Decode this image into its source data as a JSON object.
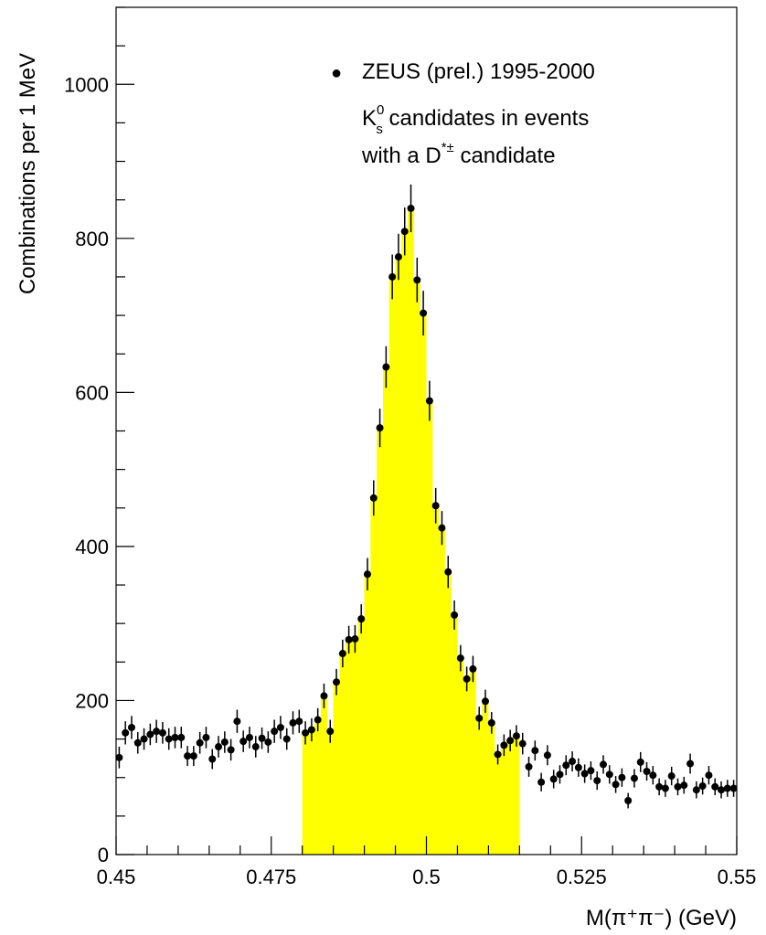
{
  "chart_data": {
    "type": "scatter",
    "xlabel": "M(π⁺π⁻)  (GeV)",
    "ylabel": "Combinations per 1 MeV",
    "xlim": [
      0.45,
      0.55
    ],
    "ylim": [
      0,
      1100
    ],
    "x_ticks": [
      {
        "value": 0.45,
        "label": "0.45"
      },
      {
        "value": 0.475,
        "label": "0.475"
      },
      {
        "value": 0.5,
        "label": "0.5"
      },
      {
        "value": 0.525,
        "label": "0.525"
      },
      {
        "value": 0.55,
        "label": "0.55"
      }
    ],
    "y_ticks": [
      {
        "value": 0,
        "label": "0"
      },
      {
        "value": 200,
        "label": "200"
      },
      {
        "value": 400,
        "label": "400"
      },
      {
        "value": 600,
        "label": "600"
      },
      {
        "value": 800,
        "label": "800"
      },
      {
        "value": 1000,
        "label": "1000"
      }
    ],
    "grid": false,
    "legend_position": "top-right",
    "legend": {
      "marker": "●",
      "line1": "ZEUS (prel.) 1995-2000",
      "line2_symbol": "K",
      "line2_sup": "0",
      "line2_sub": "s",
      "line2_text": " candidates in events",
      "line3_text": "with a D",
      "line3_sup": "*±",
      "line3_text2": " candidate"
    },
    "colors": {
      "signal_fill": "#ffff00",
      "points": "#000000"
    },
    "signal_region": [
      0.48,
      0.515
    ],
    "series": [
      {
        "name": "ZEUS (prel.) 1995-2000",
        "x": [
          0.4505,
          0.4515,
          0.4525,
          0.4535,
          0.4545,
          0.4555,
          0.4565,
          0.4575,
          0.4585,
          0.4595,
          0.4605,
          0.4615,
          0.4625,
          0.4635,
          0.4645,
          0.4655,
          0.4665,
          0.4675,
          0.4685,
          0.4695,
          0.4705,
          0.4715,
          0.4725,
          0.4735,
          0.4745,
          0.4755,
          0.4765,
          0.4775,
          0.4785,
          0.4795,
          0.4805,
          0.4815,
          0.4825,
          0.4835,
          0.4845,
          0.4855,
          0.4865,
          0.4875,
          0.4885,
          0.4895,
          0.4905,
          0.4915,
          0.4925,
          0.4935,
          0.4945,
          0.4955,
          0.4965,
          0.4975,
          0.4985,
          0.4995,
          0.5005,
          0.5015,
          0.5025,
          0.5035,
          0.5045,
          0.5055,
          0.5065,
          0.5075,
          0.5085,
          0.5095,
          0.5105,
          0.5115,
          0.5125,
          0.5135,
          0.5145,
          0.5155,
          0.5165,
          0.5175,
          0.5185,
          0.5195,
          0.5205,
          0.5215,
          0.5225,
          0.5235,
          0.5245,
          0.5255,
          0.5265,
          0.5275,
          0.5285,
          0.5295,
          0.5305,
          0.5315,
          0.5325,
          0.5335,
          0.5345,
          0.5355,
          0.5365,
          0.5375,
          0.5385,
          0.5395,
          0.5405,
          0.5415,
          0.5425,
          0.5435,
          0.5445,
          0.5455,
          0.5465,
          0.5475,
          0.5485,
          0.5495
        ],
        "y": [
          126,
          158,
          165,
          145,
          150,
          156,
          160,
          158,
          150,
          152,
          152,
          128,
          128,
          145,
          152,
          124,
          140,
          146,
          136,
          173,
          147,
          152,
          140,
          151,
          146,
          160,
          165,
          150,
          171,
          173,
          158,
          162,
          175,
          206,
          160,
          224,
          261,
          279,
          280,
          306,
          364,
          463,
          554,
          633,
          750,
          776,
          809,
          839,
          746,
          703,
          589,
          453,
          424,
          367,
          311,
          255,
          228,
          241,
          177,
          199,
          171,
          130,
          142,
          148,
          154,
          144,
          114,
          135,
          94,
          129,
          98,
          104,
          116,
          121,
          113,
          105,
          109,
          96,
          117,
          104,
          91,
          100,
          70,
          99,
          120,
          108,
          103,
          88,
          86,
          102,
          88,
          90,
          118,
          84,
          89,
          103,
          88,
          84,
          86,
          86
        ],
        "y_err": [
          14,
          15,
          15,
          14,
          14,
          14,
          15,
          14,
          14,
          14,
          14,
          13,
          13,
          14,
          14,
          13,
          14,
          14,
          14,
          15,
          14,
          14,
          14,
          14,
          14,
          15,
          15,
          14,
          15,
          15,
          15,
          15,
          15,
          16,
          15,
          17,
          18,
          18,
          18,
          19,
          21,
          23,
          25,
          27,
          29,
          30,
          31,
          31,
          29,
          29,
          26,
          23,
          22,
          21,
          19,
          17,
          16,
          17,
          15,
          15,
          14,
          13,
          14,
          14,
          14,
          14,
          13,
          13,
          12,
          13,
          12,
          12,
          13,
          13,
          12,
          12,
          12,
          12,
          12,
          12,
          11,
          12,
          10,
          12,
          13,
          12,
          12,
          11,
          11,
          12,
          11,
          11,
          13,
          11,
          11,
          12,
          11,
          11,
          11,
          11
        ]
      }
    ]
  }
}
